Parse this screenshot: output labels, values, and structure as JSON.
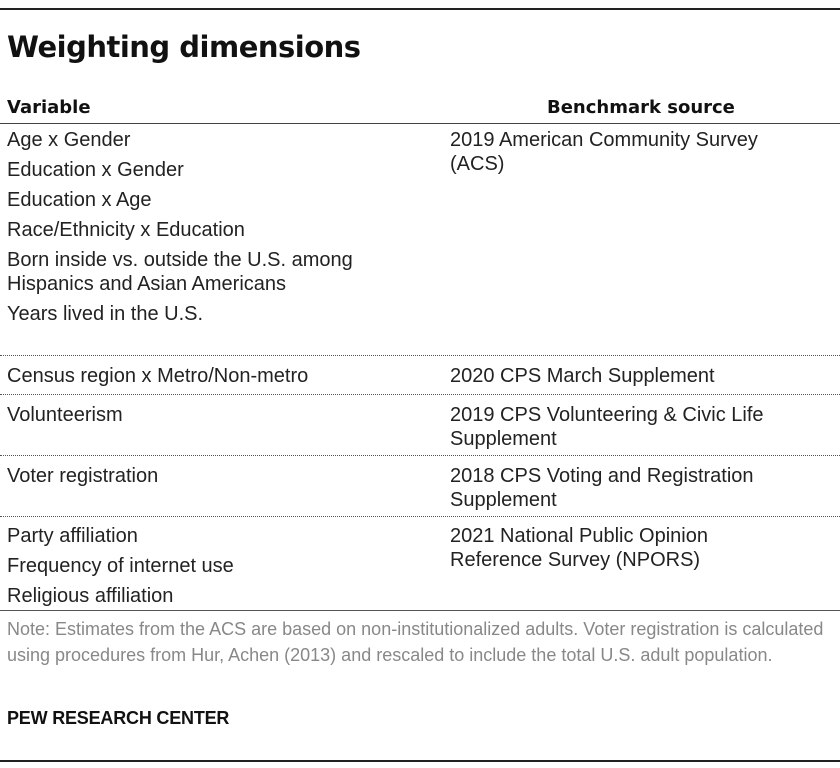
{
  "title": "Weighting dimensions",
  "columns": {
    "variable": "Variable",
    "benchmark": "Benchmark source"
  },
  "groups": [
    {
      "variables": [
        "Age x Gender",
        "Education x Gender",
        "Education x Age",
        "Race/Ethnicity x Education",
        "Born inside vs. outside the U.S. among Hispanics and Asian Americans",
        "Years lived in the U.S."
      ],
      "source": "2019 American Community Survey (ACS)"
    },
    {
      "variables": [
        "Census region x Metro/Non-metro"
      ],
      "source": "2020 CPS March Supplement"
    },
    {
      "variables": [
        "Volunteerism"
      ],
      "source": "2019 CPS Volunteering & Civic Life Supplement"
    },
    {
      "variables": [
        "Voter registration"
      ],
      "source": "2018 CPS Voting and Registration Supplement"
    },
    {
      "variables": [
        "Party affiliation",
        "Frequency of internet use",
        "Religious affiliation"
      ],
      "source": "2021 National Public Opinion Reference Survey (NPORS)"
    }
  ],
  "note": "Note: Estimates from the ACS are based on non-institutionalized adults. Voter registration is calculated using procedures from Hur, Achen (2013) and rescaled to include the total U.S. adult population.",
  "footer": "PEW RESEARCH CENTER"
}
